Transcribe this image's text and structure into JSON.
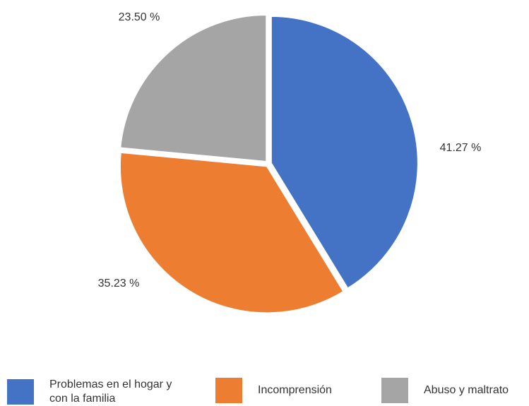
{
  "chart_data": {
    "type": "pie",
    "categories": [
      "Problemas en el hogar y con la familia",
      "Incomprensión",
      "Abuso y maltrato"
    ],
    "values": [
      41.27,
      35.23,
      23.5
    ],
    "value_labels": [
      "41.27 %",
      "35.23 %",
      "23.50 %"
    ],
    "colors": [
      "#4472c4",
      "#ed7d31",
      "#a5a5a5"
    ],
    "legend": "bottom"
  }
}
